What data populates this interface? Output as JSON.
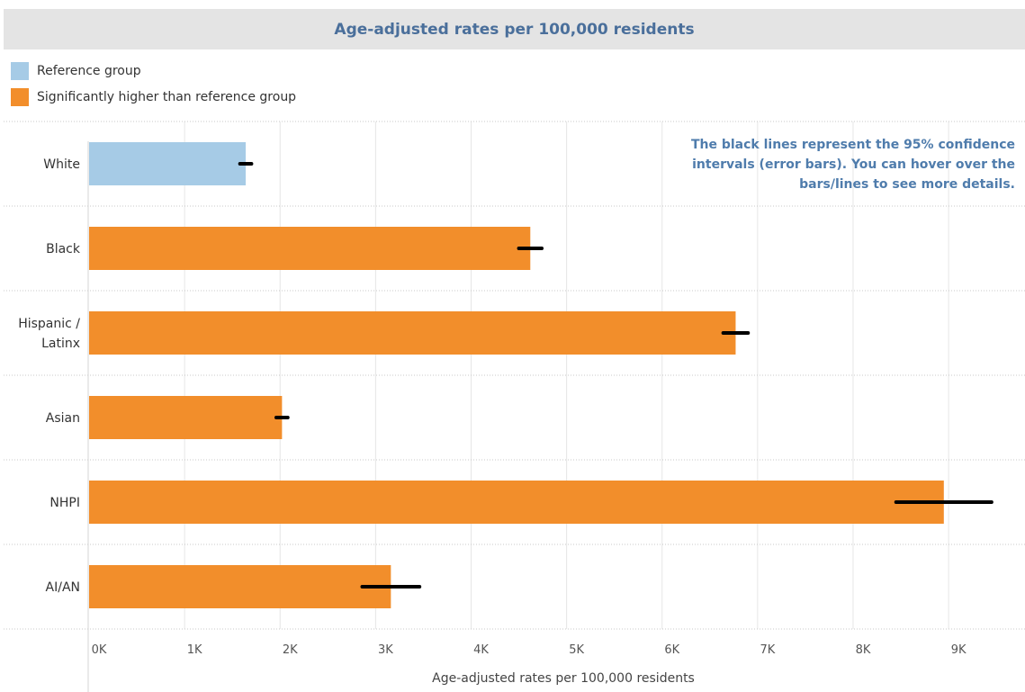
{
  "title": "Age-adjusted rates per 100,000 residents",
  "legend": [
    {
      "label": "Reference group",
      "color": "#a6cbe6"
    },
    {
      "label": "Significantly higher than reference group",
      "color": "#f28e2b"
    }
  ],
  "note": "The black lines represent the 95% confidence intervals (error bars). You can hover over the bars/lines to see more details.",
  "chart_data": {
    "type": "bar",
    "orientation": "horizontal",
    "title": "Age-adjusted rates per 100,000 residents",
    "xlabel": "Age-adjusted rates per 100,000 residents",
    "xlim": [
      0,
      9800
    ],
    "xticks": [
      0,
      1000,
      2000,
      3000,
      4000,
      5000,
      6000,
      7000,
      8000,
      9000
    ],
    "xtick_labels": [
      "0K",
      "1K",
      "2K",
      "3K",
      "4K",
      "5K",
      "6K",
      "7K",
      "8K",
      "9K"
    ],
    "grid": true,
    "categories": [
      {
        "label": "White",
        "lines": [
          "White"
        ],
        "value": 1640,
        "ci": [
          1580,
          1700
        ],
        "group": "Reference group"
      },
      {
        "label": "Black",
        "lines": [
          "Black"
        ],
        "value": 4620,
        "ci": [
          4500,
          4740
        ],
        "group": "Significantly higher than reference group"
      },
      {
        "label": "Hispanic / Latinx",
        "lines": [
          "Hispanic /",
          "Latinx"
        ],
        "value": 6770,
        "ci": [
          6640,
          6900
        ],
        "group": "Significantly higher than reference group"
      },
      {
        "label": "Asian",
        "lines": [
          "Asian"
        ],
        "value": 2020,
        "ci": [
          1960,
          2080
        ],
        "group": "Significantly higher than reference group"
      },
      {
        "label": "NHPI",
        "lines": [
          "NHPI"
        ],
        "value": 8950,
        "ci": [
          8450,
          9450
        ],
        "group": "Significantly higher than reference group"
      },
      {
        "label": "AI/AN",
        "lines": [
          "AI/AN"
        ],
        "value": 3160,
        "ci": [
          2860,
          3460
        ],
        "group": "Significantly higher than reference group"
      }
    ]
  }
}
